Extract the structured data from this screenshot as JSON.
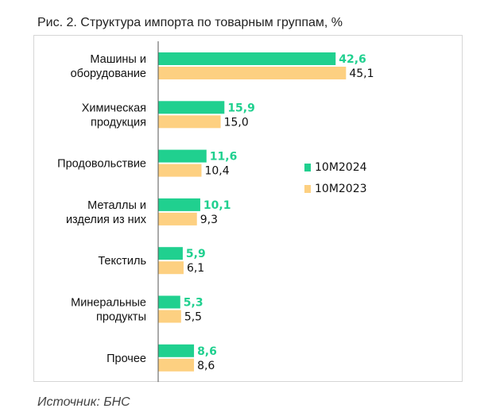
{
  "title": "Рис. 2. Структура импорта по товарным группам, %",
  "source": "Источник: БНС",
  "colors": {
    "series_2024": "#20d08f",
    "series_2023": "#fdd081"
  },
  "chart_data": {
    "type": "bar",
    "orientation": "horizontal",
    "title": "Рис. 2. Структура импорта по товарным группам, %",
    "categories": [
      [
        "Машины и",
        "оборудование"
      ],
      [
        "Химическая",
        "продукция"
      ],
      [
        "Продовольствие"
      ],
      [
        "Металлы и",
        "изделия из них"
      ],
      [
        "Текстиль"
      ],
      [
        "Минеральные",
        "продукты"
      ],
      [
        "Прочее"
      ]
    ],
    "series": [
      {
        "name": "10М2024",
        "values": [
          42.6,
          15.9,
          11.6,
          10.1,
          5.9,
          5.3,
          8.6
        ],
        "labels": [
          "42,6",
          "15,9",
          "11,6",
          "10,1",
          "5,9",
          "5,3",
          "8,6"
        ]
      },
      {
        "name": "10М2023",
        "values": [
          45.1,
          15.0,
          10.4,
          9.3,
          6.1,
          5.5,
          8.6
        ],
        "labels": [
          "45,1",
          "15,0",
          "10,4",
          "9,3",
          "6,1",
          "5,5",
          "8,6"
        ]
      }
    ],
    "xlim": [
      0,
      50
    ],
    "grid": false,
    "legend_position": "right-middle"
  }
}
